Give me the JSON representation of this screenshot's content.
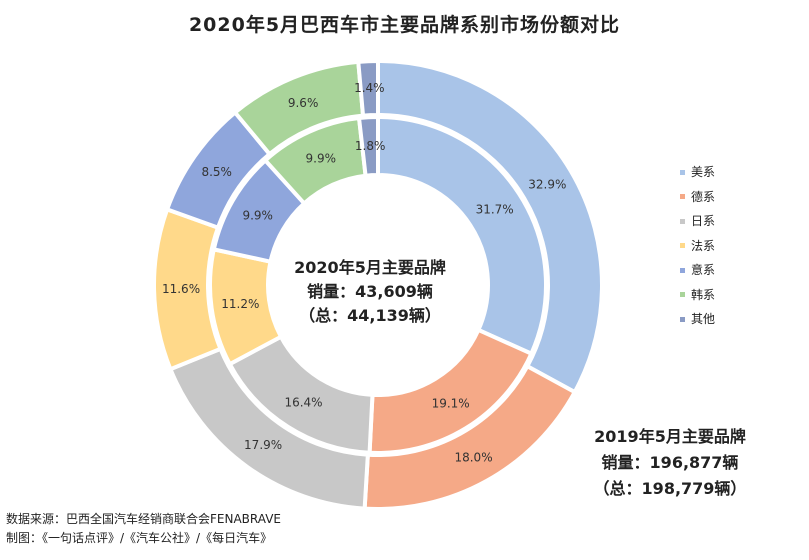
{
  "title": "2020年5月巴西车市主要品牌系别市场份额对比",
  "center_label": {
    "line1": "2020年5月主要品牌",
    "line2": "销量：43,609辆",
    "line3": "（总：44,139辆）"
  },
  "outer_label": {
    "line1": "2019年5月主要品牌",
    "line2": "销量：196,877辆",
    "line3": "（总：198,779辆）"
  },
  "source": {
    "line1": "数据来源：巴西全国汽车经销商联合会FENABRAVE",
    "line2": "制图：《一句话点评》/《汽车公社》/《每日汽车》"
  },
  "chart_data": {
    "type": "pie",
    "variant": "doughnut",
    "categories": [
      "美系",
      "德系",
      "日系",
      "法系",
      "意系",
      "韩系",
      "其他"
    ],
    "colors": [
      "#a9c4e8",
      "#f5a987",
      "#c8c8c8",
      "#ffd98a",
      "#8fa6dc",
      "#a9d49a",
      "#8a9bc4"
    ],
    "series": [
      {
        "ring": "inner",
        "values": [
          31.7,
          19.1,
          16.4,
          11.2,
          9.9,
          9.9,
          1.8
        ],
        "labels": [
          "31.7%",
          "19.1%",
          "16.4%",
          "11.2%",
          "9.9%",
          "9.9%",
          "1.8%"
        ]
      },
      {
        "ring": "outer",
        "values": [
          32.9,
          18.0,
          17.9,
          11.6,
          8.5,
          9.6,
          1.4
        ],
        "labels": [
          "32.9%",
          "18.0%",
          "17.9%",
          "11.6%",
          "8.5%",
          "9.6%",
          "1.4%"
        ]
      }
    ],
    "legend_position": "right"
  }
}
